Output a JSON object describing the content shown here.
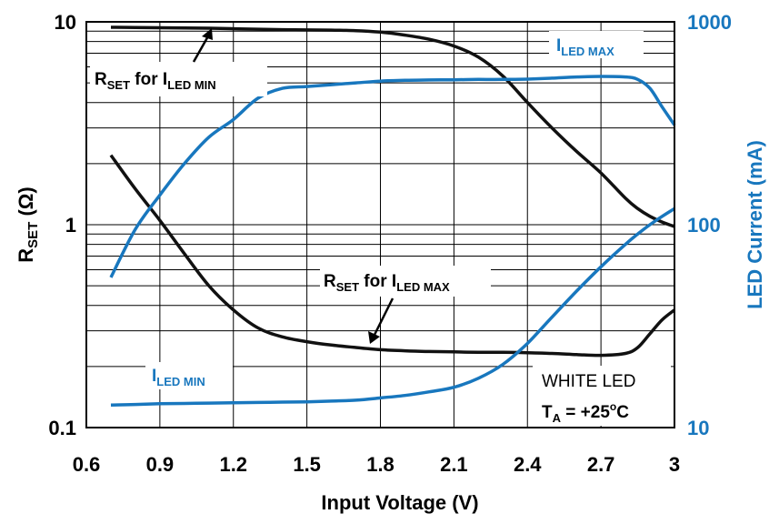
{
  "chart_data": {
    "type": "line",
    "colors": {
      "rset": "#111111",
      "led": "#1877be",
      "grid": "#000000"
    },
    "x_axis": {
      "title": "Input Voltage (V)",
      "range": [
        0.6,
        3.0
      ],
      "ticks": [
        0.6,
        0.9,
        1.2,
        1.5,
        1.8,
        2.1,
        2.4,
        2.7,
        3.0
      ],
      "tick_labels": [
        "0.6",
        "0.9",
        "1.2",
        "1.5",
        "1.8",
        "2.1",
        "2.4",
        "2.7",
        "3"
      ]
    },
    "y_left": {
      "title_main": "R",
      "title_sub": "SET",
      "title_tail": " (Ω)",
      "scale": "log",
      "range": [
        0.1,
        10
      ],
      "ticks": [
        0.1,
        1,
        10
      ],
      "tick_labels": [
        "0.1",
        "1",
        "10"
      ]
    },
    "y_right": {
      "title": "LED Current (mA)",
      "scale": "log",
      "range": [
        10,
        1000
      ],
      "ticks": [
        10,
        100,
        1000
      ],
      "tick_labels": [
        "10",
        "100",
        "1000"
      ]
    },
    "grid": true,
    "series": [
      {
        "axis": "left",
        "x": [
          0.7,
          0.8,
          0.9,
          1.0,
          1.1,
          1.2,
          1.3,
          1.4,
          1.5,
          1.6,
          1.7,
          1.8,
          1.9,
          2.0,
          2.1,
          2.2,
          2.3,
          2.4,
          2.5,
          2.6,
          2.7,
          2.8,
          2.85,
          2.9,
          2.95,
          3.0
        ],
        "y": [
          9.4,
          9.38,
          9.35,
          9.33,
          9.3,
          9.25,
          9.2,
          9.15,
          9.12,
          9.1,
          9.05,
          8.9,
          8.6,
          8.2,
          7.6,
          6.7,
          5.4,
          4.0,
          3.0,
          2.3,
          1.8,
          1.35,
          1.2,
          1.1,
          1.03,
          0.98
        ]
      },
      {
        "axis": "left",
        "x": [
          0.7,
          0.8,
          0.9,
          1.0,
          1.1,
          1.2,
          1.3,
          1.4,
          1.5,
          1.6,
          1.7,
          1.8,
          1.9,
          2.0,
          2.1,
          2.2,
          2.3,
          2.4,
          2.5,
          2.6,
          2.7,
          2.8,
          2.85,
          2.9,
          2.95,
          3.0
        ],
        "y": [
          2.2,
          1.5,
          1.05,
          0.72,
          0.5,
          0.38,
          0.31,
          0.28,
          0.265,
          0.255,
          0.248,
          0.242,
          0.239,
          0.237,
          0.236,
          0.235,
          0.235,
          0.234,
          0.232,
          0.229,
          0.227,
          0.232,
          0.248,
          0.29,
          0.34,
          0.38
        ]
      },
      {
        "axis": "right",
        "x": [
          0.7,
          0.8,
          0.9,
          1.0,
          1.1,
          1.2,
          1.3,
          1.4,
          1.5,
          1.6,
          1.7,
          1.8,
          1.9,
          2.0,
          2.1,
          2.2,
          2.3,
          2.4,
          2.5,
          2.6,
          2.7,
          2.8,
          2.85,
          2.9,
          2.95,
          3.0
        ],
        "y": [
          55,
          95,
          140,
          200,
          270,
          330,
          420,
          470,
          480,
          490,
          500,
          510,
          515,
          517,
          518,
          520,
          520,
          522,
          528,
          535,
          538,
          535,
          520,
          470,
          380,
          310
        ]
      },
      {
        "axis": "right",
        "x": [
          0.7,
          0.8,
          0.9,
          1.0,
          1.1,
          1.2,
          1.3,
          1.4,
          1.5,
          1.6,
          1.7,
          1.8,
          1.9,
          2.0,
          2.1,
          2.2,
          2.3,
          2.4,
          2.5,
          2.6,
          2.7,
          2.8,
          2.85,
          2.9,
          2.95,
          3.0
        ],
        "y": [
          12.9,
          13.0,
          13.1,
          13.15,
          13.2,
          13.25,
          13.3,
          13.35,
          13.4,
          13.5,
          13.65,
          14.0,
          14.4,
          15.0,
          15.8,
          17.5,
          20.5,
          26,
          35,
          47,
          62,
          80,
          90,
          100,
          110,
          120
        ]
      }
    ],
    "annotations": {
      "rset_min": {
        "main": "R",
        "sub1": "SET",
        "mid": " for I",
        "sub2": "LED MIN"
      },
      "rset_max": {
        "main": "R",
        "sub1": "SET",
        "mid": " for I",
        "sub2": "LED MAX"
      },
      "iled_max": {
        "main": "I",
        "sub": "LED MAX"
      },
      "iled_min": {
        "main": "I",
        "sub": "LED MIN"
      },
      "white_led": "WHITE LED",
      "ta": {
        "main": "T",
        "sub": "A",
        "mid": " = +25",
        "sup": "o",
        "tail": "C"
      }
    }
  }
}
